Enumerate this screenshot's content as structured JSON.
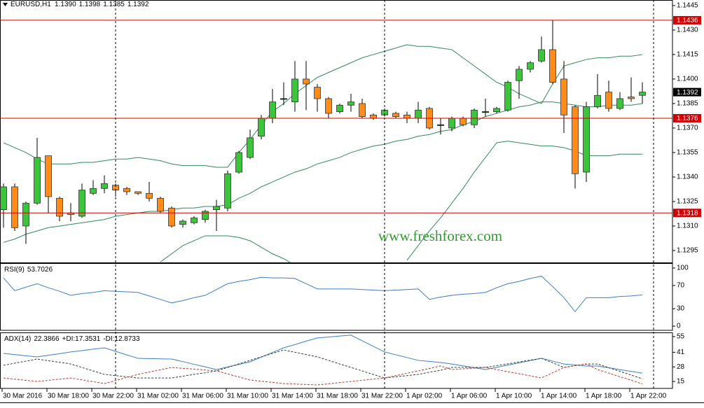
{
  "chart_data": [
    {
      "type": "candlestick",
      "title": "EURUSD,H1",
      "last_bar_labels": [
        "1.1390",
        "1.1398",
        "1.1385",
        "1.1392"
      ],
      "watermark": "www.freshforex.com",
      "categories": [
        "30 Mar 2016",
        null,
        null,
        null,
        "30 Mar 18:00",
        null,
        null,
        null,
        "30 Mar 22:00",
        null,
        null,
        null,
        "31 Mar 02:00",
        null,
        null,
        null,
        "31 Mar 06:00",
        null,
        null,
        null,
        "31 Mar 10:00",
        null,
        null,
        null,
        "31 Mar 14:00",
        null,
        null,
        null,
        "31 Mar 18:00",
        null,
        null,
        null,
        "31 Mar 22:00",
        null,
        null,
        null,
        "1 Apr 02:00",
        null,
        null,
        null,
        "1 Apr 06:00",
        null,
        null,
        null,
        "1 Apr 10:00",
        null,
        null,
        null,
        "1 Apr 14:00",
        null,
        null,
        null,
        "1 Apr 18:00",
        null,
        null,
        null,
        "1 Apr 22:00",
        null
      ],
      "open": [
        1.132,
        1.1334,
        1.131,
        1.1324,
        1.1353,
        1.1327,
        1.1318,
        1.1316,
        1.133,
        1.1333,
        1.1335,
        1.1333,
        1.1331,
        1.133,
        1.1327,
        1.1321,
        1.1311,
        1.1312,
        1.1314,
        1.132,
        1.1321,
        1.1343,
        1.1352,
        1.1365,
        1.1376,
        1.1388,
        1.1386,
        1.14,
        1.1395,
        1.1388,
        1.138,
        1.1384,
        1.1385,
        1.1378,
        1.1378,
        1.1379,
        1.1378,
        1.1376,
        1.1382,
        1.1372,
        1.137,
        1.1376,
        1.1372,
        1.138,
        1.138,
        1.1381,
        1.1399,
        1.1406,
        1.1411,
        1.1418,
        1.14,
        1.1383,
        1.1343,
        1.1383,
        1.1392,
        1.1382,
        1.1389,
        1.139
      ],
      "high": [
        1.1336,
        1.1336,
        1.1325,
        1.1364,
        1.1353,
        1.1328,
        1.1324,
        1.1336,
        1.1338,
        1.1341,
        1.1336,
        1.1334,
        1.1331,
        1.1337,
        1.1328,
        1.1322,
        1.1314,
        1.1316,
        1.132,
        1.1326,
        1.1344,
        1.1356,
        1.1369,
        1.1378,
        1.1394,
        1.1398,
        1.1411,
        1.1411,
        1.1397,
        1.1389,
        1.1385,
        1.1391,
        1.1388,
        1.1379,
        1.1382,
        1.138,
        1.138,
        1.1386,
        1.1383,
        1.1376,
        1.1377,
        1.1377,
        1.1382,
        1.1388,
        1.1383,
        1.1399,
        1.1408,
        1.1411,
        1.1426,
        1.1436,
        1.1411,
        1.1384,
        1.1386,
        1.1403,
        1.1399,
        1.1392,
        1.1401,
        1.1398
      ],
      "low": [
        1.1309,
        1.1307,
        1.1299,
        1.1323,
        1.1318,
        1.1313,
        1.1313,
        1.1315,
        1.1329,
        1.133,
        1.1328,
        1.1329,
        1.1329,
        1.1325,
        1.1318,
        1.1309,
        1.1309,
        1.1311,
        1.1312,
        1.1307,
        1.1319,
        1.1342,
        1.1351,
        1.1363,
        1.1373,
        1.1384,
        1.138,
        1.1381,
        1.138,
        1.1376,
        1.1379,
        1.138,
        1.1376,
        1.1375,
        1.1377,
        1.1376,
        1.1373,
        1.1373,
        1.1369,
        1.1366,
        1.1368,
        1.1371,
        1.137,
        1.1377,
        1.1379,
        1.138,
        1.1388,
        1.1404,
        1.141,
        1.1397,
        1.1367,
        1.1333,
        1.1337,
        1.1382,
        1.138,
        1.1381,
        1.1386,
        1.1385
      ],
      "close": [
        1.1334,
        1.1309,
        1.1324,
        1.1352,
        1.1328,
        1.1316,
        1.1317,
        1.1332,
        1.1333,
        1.1336,
        1.1332,
        1.1331,
        1.133,
        1.1327,
        1.1319,
        1.131,
        1.1313,
        1.1315,
        1.1319,
        1.1322,
        1.1342,
        1.1355,
        1.1364,
        1.1376,
        1.1386,
        1.1388,
        1.14,
        1.1397,
        1.1388,
        1.1379,
        1.1384,
        1.1386,
        1.1377,
        1.1376,
        1.1381,
        1.1377,
        1.1376,
        1.1381,
        1.137,
        1.1372,
        1.1376,
        1.1372,
        1.1381,
        1.138,
        1.1382,
        1.1398,
        1.1406,
        1.141,
        1.1418,
        1.1398,
        1.1378,
        1.1342,
        1.1383,
        1.139,
        1.1382,
        1.1388,
        1.1388,
        1.1392
      ],
      "up_color": "#3cc43c",
      "down_color": "#ff8c1a",
      "series": [
        {
          "color": "#2e8b57",
          "values": [
            1.1361,
            1.1358,
            1.1355,
            1.1351,
            1.1348,
            1.1348,
            1.1348,
            1.1349,
            1.1349,
            1.135,
            1.1351,
            1.1351,
            1.1352,
            1.1351,
            1.135,
            1.1348,
            1.1347,
            1.1347,
            1.1347,
            1.1346,
            1.1346,
            1.1355,
            1.1363,
            1.1372,
            1.138,
            1.1385,
            1.1391,
            1.1396,
            1.1401,
            1.1404,
            1.1407,
            1.141,
            1.1413,
            1.1415,
            1.1417,
            1.1419,
            1.1421,
            1.142,
            1.142,
            1.1419,
            1.1418,
            1.1413,
            1.1408,
            1.1403,
            1.1398,
            1.1395,
            1.1391,
            1.1388,
            1.1385,
            1.1397,
            1.1408,
            1.141,
            1.1412,
            1.1413,
            1.1413,
            1.1414,
            1.1414,
            1.1415
          ]
        },
        {
          "color": "#2e8b57",
          "values": [
            1.13,
            1.1302,
            1.1305,
            1.1307,
            1.1309,
            1.131,
            1.1311,
            1.1312,
            1.1313,
            1.1314,
            1.1316,
            1.1317,
            1.1318,
            1.1319,
            1.1319,
            1.132,
            1.1321,
            1.1321,
            1.1322,
            1.1322,
            1.1323,
            1.1327,
            1.133,
            1.1334,
            1.1337,
            1.134,
            1.1343,
            1.1345,
            1.1348,
            1.135,
            1.1352,
            1.1355,
            1.1357,
            1.1359,
            1.136,
            1.1362,
            1.1363,
            1.1365,
            1.1366,
            1.1368,
            1.1369,
            1.1372,
            1.1374,
            1.1377,
            1.1379,
            1.1381,
            1.1383,
            1.1384,
            1.1386,
            1.1386,
            1.1385,
            1.1384,
            1.1383,
            1.1383,
            1.1384,
            1.1384,
            1.1384,
            1.1385
          ]
        },
        {
          "color": "#2e8b57",
          "values": [
            null,
            null,
            null,
            null,
            null,
            null,
            null,
            null,
            null,
            null,
            null,
            null,
            null,
            null,
            1.1288,
            1.1293,
            1.1298,
            1.1301,
            1.1304,
            1.1304,
            1.1304,
            1.1303,
            1.1301,
            1.1297,
            1.1293,
            1.129,
            1.1286,
            null,
            null,
            null,
            null,
            null,
            null,
            null,
            null,
            null,
            1.1289,
            1.1298,
            1.1307,
            1.1315,
            1.1324,
            1.1333,
            1.1343,
            1.1352,
            1.1361,
            1.1362,
            1.1361,
            1.136,
            1.1359,
            1.1359,
            1.1358,
            1.1356,
            1.1353,
            1.1353,
            1.1353,
            1.1354,
            1.1354,
            1.1354
          ]
        }
      ],
      "levels": [
        1.1436,
        1.1376,
        1.1318
      ],
      "level_color": "#d00000",
      "ylim": [
        1.12877,
        1.14484
      ],
      "yticks": [
        1.1445,
        {
          "value": 1.143,
          "label": "1.1430"
        },
        1.1415,
        {
          "value": 1.14,
          "label": "1.1400"
        },
        1.1385,
        {
          "value": 1.137,
          "label": "1.1370"
        },
        1.1355,
        {
          "value": 1.134,
          "label": "1.1340"
        },
        1.1325,
        {
          "value": 1.131,
          "label": "1.1310"
        },
        1.1295
      ]
    },
    {
      "type": "line",
      "series": [
        {
          "name": "RSI(9)",
          "color": "#3a7fc4",
          "dash": false,
          "values": [
            83,
            61,
            67,
            73,
            66,
            60,
            53,
            56,
            58,
            61,
            60,
            59,
            58,
            52,
            46,
            40,
            44,
            49,
            53,
            63,
            73,
            77,
            80,
            84,
            83,
            83,
            82,
            73,
            64,
            64,
            64,
            64,
            63,
            62,
            61,
            62,
            63,
            64,
            46,
            50,
            53,
            55,
            56,
            58,
            66,
            73,
            77,
            82,
            86,
            68,
            49,
            25,
            49,
            49,
            49,
            51,
            52,
            53.7026
          ]
        }
      ],
      "ylim": [
        -7.2,
        108.4
      ],
      "yticks": [
        0,
        30,
        70,
        100
      ]
    },
    {
      "type": "line",
      "series": [
        {
          "name": "ADX(14)",
          "color": "#3a7fc4",
          "dash": false,
          "values": [
            40,
            39,
            37.9,
            36.9,
            38.4,
            39.8,
            41.3,
            42.5,
            43.8,
            45,
            41.9,
            38.7,
            35.6,
            35.4,
            35.2,
            35,
            32.7,
            30.3,
            28,
            25.6,
            27.9,
            30.2,
            32.5,
            36.7,
            40.8,
            45,
            47.9,
            50.9,
            53.8,
            54.6,
            55.5,
            56.3,
            51.3,
            46.3,
            41.3,
            38.8,
            36.3,
            33.8,
            32.9,
            31.9,
            30.6,
            28.9,
            27.3,
            25.6,
            27.6,
            29.6,
            31.6,
            33.6,
            35.6,
            33.1,
            30.6,
            29.7,
            28.8,
            28.8,
            27.2,
            25.6,
            24,
            22.3866
          ]
        },
        {
          "name": "+DI:",
          "color": "#2f3f2f",
          "dash": true,
          "values": [
            29.4,
            31.3,
            33.1,
            35,
            33.5,
            32.1,
            30.6,
            27.5,
            24.4,
            21.3,
            20.2,
            19.2,
            18.1,
            18.1,
            18.1,
            18.1,
            19.7,
            21.3,
            22.8,
            24.4,
            27.5,
            30.7,
            33.8,
            36.9,
            40,
            43.1,
            41,
            39,
            36.9,
            33.8,
            30.6,
            27.5,
            24.4,
            21.2,
            18.1,
            19.2,
            20.2,
            21.3,
            23.2,
            25,
            27.5,
            27.5,
            27.5,
            27.5,
            29.1,
            30.7,
            32.4,
            34,
            35.6,
            31.6,
            27.5,
            29.1,
            30.6,
            30.6,
            27.3,
            24,
            20.7,
            17.3531
          ]
        },
        {
          "name": "-DI:",
          "color": "#c0392b",
          "dash": true,
          "values": [
            18.1,
            17.1,
            16,
            15,
            16,
            17.1,
            18.1,
            16.4,
            14.8,
            13.1,
            15.8,
            18.6,
            21.3,
            23.4,
            25.4,
            27.5,
            26.7,
            26,
            25.2,
            24.4,
            21.7,
            19,
            16.3,
            15.2,
            14.2,
            13.1,
            12.7,
            12.3,
            11.9,
            12.9,
            14,
            15,
            16,
            17.1,
            18.1,
            20.2,
            22.3,
            24.4,
            26.6,
            28.8,
            25.6,
            26.2,
            26.9,
            27.5,
            25.6,
            23.7,
            21.9,
            20,
            18.1,
            22.8,
            27.5,
            29.1,
            30.6,
            25.6,
            22.4,
            19.2,
            16.1,
            12.8733
          ]
        }
      ],
      "ylim": [
        8.8,
        58.1
      ],
      "yticks": [
        15,
        28,
        41,
        55
      ]
    }
  ]
}
